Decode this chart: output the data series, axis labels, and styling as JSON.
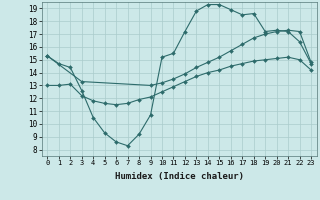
{
  "xlabel": "Humidex (Indice chaleur)",
  "background_color": "#cce8e8",
  "grid_color": "#aacccc",
  "line_color": "#2d6b6b",
  "xlim": [
    -0.5,
    23.5
  ],
  "ylim": [
    7.5,
    19.5
  ],
  "xticks": [
    0,
    1,
    2,
    3,
    4,
    5,
    6,
    7,
    8,
    9,
    10,
    11,
    12,
    13,
    14,
    15,
    16,
    17,
    18,
    19,
    20,
    21,
    22,
    23
  ],
  "yticks": [
    8,
    9,
    10,
    11,
    12,
    13,
    14,
    15,
    16,
    17,
    18,
    19
  ],
  "line1_x": [
    0,
    1,
    2,
    3,
    4,
    5,
    6,
    7,
    8,
    9,
    10,
    11,
    12,
    13,
    14,
    15,
    16,
    17,
    18,
    19,
    20,
    21,
    22,
    23
  ],
  "line1_y": [
    15.3,
    14.7,
    14.4,
    12.6,
    10.5,
    9.3,
    8.6,
    8.3,
    9.2,
    10.7,
    15.2,
    15.5,
    17.2,
    18.8,
    19.3,
    19.3,
    18.9,
    18.5,
    18.6,
    17.2,
    17.3,
    17.2,
    16.4,
    14.7
  ],
  "line2_x": [
    0,
    3,
    9,
    10,
    11,
    12,
    13,
    14,
    15,
    16,
    17,
    18,
    19,
    20,
    21,
    22,
    23
  ],
  "line2_y": [
    15.3,
    13.3,
    13.0,
    13.2,
    13.5,
    13.9,
    14.4,
    14.8,
    15.2,
    15.7,
    16.2,
    16.7,
    17.0,
    17.2,
    17.3,
    17.2,
    14.8
  ],
  "line3_x": [
    0,
    1,
    2,
    3,
    4,
    5,
    6,
    7,
    8,
    9,
    10,
    11,
    12,
    13,
    14,
    15,
    16,
    17,
    18,
    19,
    20,
    21,
    22,
    23
  ],
  "line3_y": [
    13.0,
    13.0,
    13.1,
    12.2,
    11.8,
    11.6,
    11.5,
    11.6,
    11.9,
    12.1,
    12.5,
    12.9,
    13.3,
    13.7,
    14.0,
    14.2,
    14.5,
    14.7,
    14.9,
    15.0,
    15.1,
    15.2,
    15.0,
    14.2
  ]
}
